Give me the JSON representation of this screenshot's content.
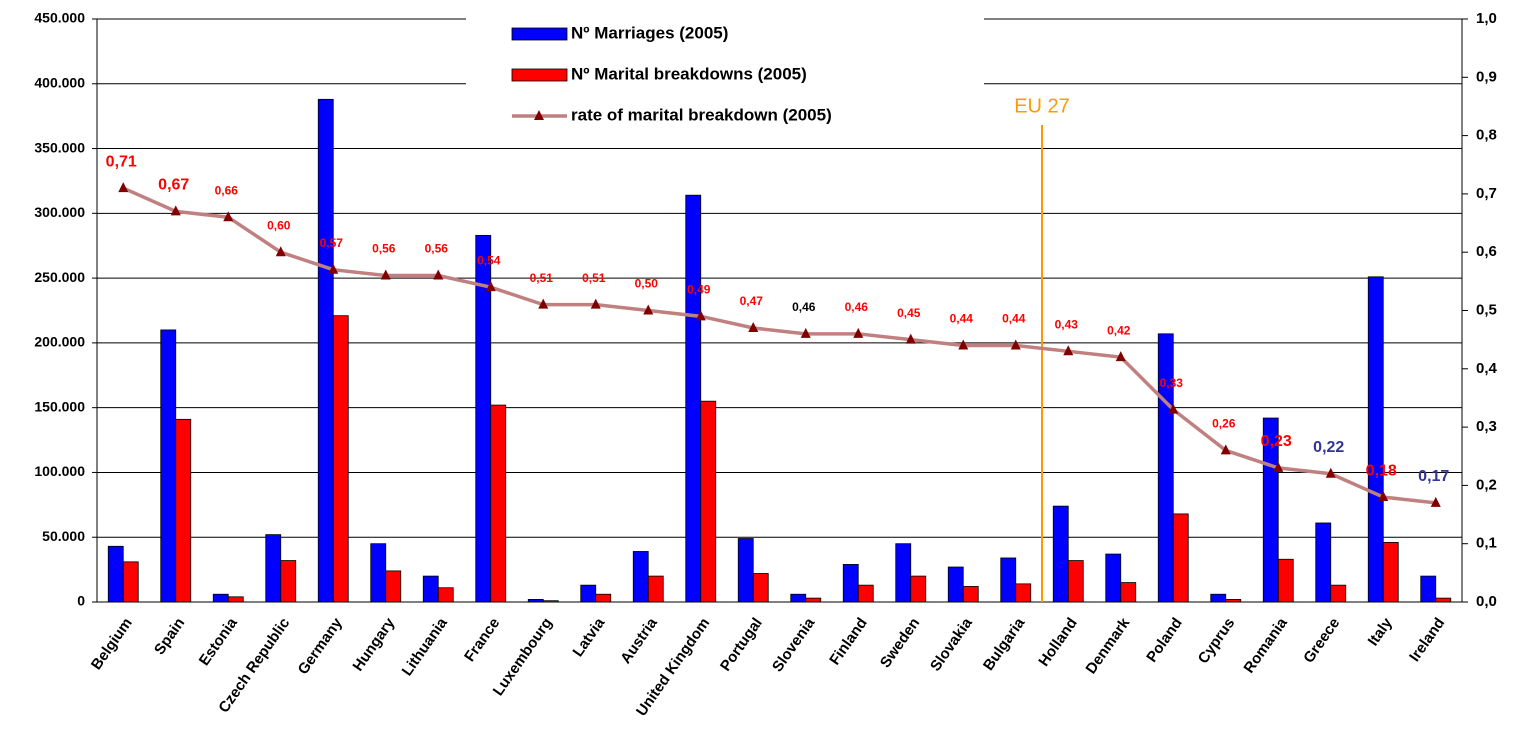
{
  "chart_data": {
    "type": "bar",
    "categories": [
      "Belgium",
      "Spain",
      "Estonia",
      "Czech Republic",
      "Germany",
      "Hungary",
      "Lithuania",
      "France",
      "Luxembourg",
      "Latvia",
      "Austria",
      "United Kingdom",
      "Portugal",
      "Slovenia",
      "Finland",
      "Sweden",
      "Slovakia",
      "Bulgaria",
      "Holland",
      "Denmark",
      "Poland",
      "Cyprus",
      "Romania",
      "Greece",
      "Italy",
      "Ireland"
    ],
    "series": [
      {
        "name": "Nº Marriages (2005)",
        "color": "#0000ff",
        "type": "bar",
        "values": [
          43000,
          210000,
          6000,
          52000,
          388000,
          45000,
          20000,
          283000,
          2000,
          13000,
          39000,
          314000,
          49000,
          6000,
          29000,
          45000,
          27000,
          34000,
          74000,
          37000,
          207000,
          6000,
          142000,
          61000,
          251000,
          20000
        ]
      },
      {
        "name": "Nº Marital breakdowns (2005)",
        "color": "#ff0000",
        "type": "bar",
        "values": [
          31000,
          141000,
          4000,
          32000,
          221000,
          24000,
          11000,
          152000,
          1000,
          6000,
          20000,
          155000,
          22000,
          3000,
          13000,
          20000,
          12000,
          14000,
          32000,
          15000,
          68000,
          2000,
          33000,
          13000,
          46000,
          3000
        ]
      },
      {
        "name": "rate of marital breakdown (2005)",
        "color": "#c08080",
        "marker_color": "#800000",
        "type": "line",
        "axis": "y2",
        "values": [
          0.71,
          0.67,
          0.66,
          0.6,
          0.57,
          0.56,
          0.56,
          0.54,
          0.51,
          0.51,
          0.5,
          0.49,
          0.47,
          0.46,
          0.46,
          0.45,
          0.44,
          0.44,
          0.43,
          0.42,
          0.33,
          0.26,
          0.23,
          0.22,
          0.18,
          0.17
        ],
        "value_labels": [
          "0,71",
          "0,67",
          "0,66",
          "0,60",
          "0,57",
          "0,56",
          "0,56",
          "0,54",
          "0,51",
          "0,51",
          "0,50",
          "0,49",
          "0,47",
          "0,46",
          "0,46",
          "0,45",
          "0,44",
          "0,44",
          "0,43",
          "0,42",
          "0,33",
          "0,26",
          "0,23",
          "0,22",
          "0,18",
          "0,17"
        ],
        "value_label_colors": [
          "#ff0000",
          "#ff0000",
          "#ff0000",
          "#ff0000",
          "#ff0000",
          "#ff0000",
          "#ff0000",
          "#ff0000",
          "#ff0000",
          "#ff0000",
          "#ff0000",
          "#ff0000",
          "#ff0000",
          "#000000",
          "#ff0000",
          "#ff0000",
          "#ff0000",
          "#ff0000",
          "#ff0000",
          "#ff0000",
          "#ff0000",
          "#ff0000",
          "#ff0000",
          "#333399",
          "#ff0000",
          "#333399"
        ]
      }
    ],
    "ylim": [
      0,
      450000
    ],
    "yticks": [
      0,
      {
        "value": 50000,
        "label": "50.000"
      },
      {
        "value": 100000,
        "label": "100.000"
      },
      {
        "value": 150000,
        "label": "150.000"
      },
      {
        "value": 200000,
        "label": "200.000"
      },
      {
        "value": 250000,
        "label": "250.000"
      },
      {
        "value": 300000,
        "label": "300.000"
      },
      {
        "value": 350000,
        "label": "350.000"
      },
      {
        "value": 400000,
        "label": "400.000"
      },
      {
        "value": 450000,
        "label": "450.000"
      }
    ],
    "y2lim": [
      0,
      1
    ],
    "y2ticks": [
      {
        "value": 0,
        "label": "0,0"
      },
      {
        "value": 0.1,
        "label": "0,1"
      },
      {
        "value": 0.2,
        "label": "0,2"
      },
      {
        "value": 0.3,
        "label": "0,3"
      },
      {
        "value": 0.4,
        "label": "0,4"
      },
      {
        "value": 0.5,
        "label": "0,5"
      },
      {
        "value": 0.6,
        "label": "0,6"
      },
      {
        "value": 0.7,
        "label": "0,7"
      },
      {
        "value": 0.8,
        "label": "0,8"
      },
      {
        "value": 0.9,
        "label": "0,9"
      },
      {
        "value": 1,
        "label": "1,0"
      }
    ],
    "grid": true,
    "legend": "top",
    "annotations": [
      {
        "text": "EU 27",
        "color": "#ff9900"
      }
    ]
  }
}
